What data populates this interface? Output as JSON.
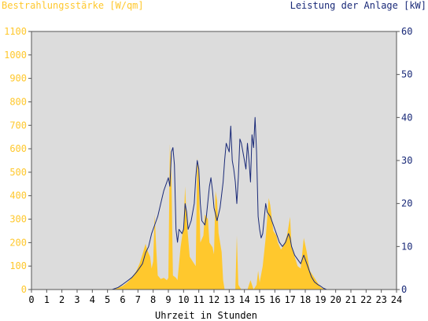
{
  "chart_data": {
    "type": "area",
    "left_axis_title": "Bestrahlungsstärke [W/qm]",
    "right_axis_title": "Leistung der Anlage [kW]",
    "xlabel": "Uhrzeit in Stunden",
    "x_ticks": [
      "0",
      "1",
      "2",
      "3",
      "4",
      "5",
      "6",
      "7",
      "8",
      "9",
      "10",
      "11",
      "12",
      "13",
      "14",
      "15",
      "16",
      "17",
      "18",
      "19",
      "20",
      "21",
      "22",
      "23",
      "24"
    ],
    "xlim": [
      0,
      24
    ],
    "left_ylim": [
      0,
      1100
    ],
    "left_ticks": [
      "0",
      "100",
      "200",
      "300",
      "400",
      "500",
      "600",
      "700",
      "800",
      "900",
      "1000",
      "1100"
    ],
    "right_ylim": [
      0,
      60
    ],
    "right_ticks": [
      "0",
      "10",
      "20",
      "30",
      "40",
      "50",
      "60"
    ],
    "grid": false,
    "colors": {
      "irradiance": "#ffc82d",
      "power": "#1a2a78",
      "left_axis": "#ffc82d",
      "right_axis": "#1a2a78",
      "plot_background": "#dcdcdc"
    },
    "series": [
      {
        "axis": "left",
        "unit": "W/qm",
        "points": [
          [
            0,
            0
          ],
          [
            5.3,
            0
          ],
          [
            5.6,
            5
          ],
          [
            6.0,
            15
          ],
          [
            6.3,
            30
          ],
          [
            6.6,
            50
          ],
          [
            6.9,
            80
          ],
          [
            7.1,
            110
          ],
          [
            7.3,
            150
          ],
          [
            7.5,
            195
          ],
          [
            7.6,
            170
          ],
          [
            7.8,
            140
          ],
          [
            7.9,
            90
          ],
          [
            8.0,
            120
          ],
          [
            8.1,
            320
          ],
          [
            8.2,
            180
          ],
          [
            8.3,
            60
          ],
          [
            8.5,
            45
          ],
          [
            8.7,
            50
          ],
          [
            8.9,
            40
          ],
          [
            9.0,
            50
          ],
          [
            9.1,
            620
          ],
          [
            9.2,
            480
          ],
          [
            9.3,
            60
          ],
          [
            9.5,
            50
          ],
          [
            9.6,
            40
          ],
          [
            9.8,
            180
          ],
          [
            10.0,
            270
          ],
          [
            10.1,
            440
          ],
          [
            10.2,
            300
          ],
          [
            10.4,
            140
          ],
          [
            10.6,
            120
          ],
          [
            10.8,
            100
          ],
          [
            10.9,
            560
          ],
          [
            11.0,
            480
          ],
          [
            11.1,
            200
          ],
          [
            11.3,
            230
          ],
          [
            11.4,
            320
          ],
          [
            11.6,
            300
          ],
          [
            11.7,
            200
          ],
          [
            11.9,
            180
          ],
          [
            12.0,
            150
          ],
          [
            12.1,
            420
          ],
          [
            12.2,
            380
          ],
          [
            12.3,
            240
          ],
          [
            12.5,
            160
          ],
          [
            12.6,
            40
          ],
          [
            12.7,
            0
          ],
          [
            13.4,
            0
          ],
          [
            13.5,
            230
          ],
          [
            13.6,
            20
          ],
          [
            13.8,
            0
          ],
          [
            14.2,
            0
          ],
          [
            14.4,
            40
          ],
          [
            14.6,
            0
          ],
          [
            14.8,
            20
          ],
          [
            14.9,
            80
          ],
          [
            15.0,
            30
          ],
          [
            15.2,
            100
          ],
          [
            15.4,
            220
          ],
          [
            15.6,
            390
          ],
          [
            15.7,
            360
          ],
          [
            15.9,
            250
          ],
          [
            16.1,
            230
          ],
          [
            16.2,
            200
          ],
          [
            16.4,
            170
          ],
          [
            16.6,
            190
          ],
          [
            16.8,
            230
          ],
          [
            17.0,
            310
          ],
          [
            17.1,
            180
          ],
          [
            17.3,
            140
          ],
          [
            17.5,
            100
          ],
          [
            17.7,
            90
          ],
          [
            17.9,
            220
          ],
          [
            18.1,
            160
          ],
          [
            18.3,
            80
          ],
          [
            18.5,
            60
          ],
          [
            18.8,
            30
          ],
          [
            19.0,
            10
          ],
          [
            19.3,
            0
          ],
          [
            24,
            0
          ]
        ]
      },
      {
        "axis": "right",
        "unit": "kW",
        "points": [
          [
            0,
            0
          ],
          [
            5.3,
            0
          ],
          [
            5.7,
            0.5
          ],
          [
            6.0,
            1.2
          ],
          [
            6.3,
            2
          ],
          [
            6.6,
            2.8
          ],
          [
            6.9,
            4
          ],
          [
            7.1,
            5
          ],
          [
            7.3,
            6
          ],
          [
            7.5,
            8.5
          ],
          [
            7.7,
            10
          ],
          [
            7.9,
            13
          ],
          [
            8.1,
            15
          ],
          [
            8.3,
            17
          ],
          [
            8.5,
            20
          ],
          [
            8.7,
            23
          ],
          [
            8.9,
            25
          ],
          [
            9.0,
            26
          ],
          [
            9.1,
            24
          ],
          [
            9.2,
            32
          ],
          [
            9.3,
            33
          ],
          [
            9.4,
            29
          ],
          [
            9.5,
            14
          ],
          [
            9.6,
            11
          ],
          [
            9.7,
            14
          ],
          [
            9.9,
            13
          ],
          [
            10.0,
            14
          ],
          [
            10.1,
            20
          ],
          [
            10.2,
            18
          ],
          [
            10.3,
            14
          ],
          [
            10.5,
            16
          ],
          [
            10.7,
            20
          ],
          [
            10.8,
            26
          ],
          [
            10.9,
            30
          ],
          [
            11.0,
            28
          ],
          [
            11.1,
            20
          ],
          [
            11.2,
            16
          ],
          [
            11.4,
            15
          ],
          [
            11.5,
            17
          ],
          [
            11.7,
            24
          ],
          [
            11.8,
            26
          ],
          [
            11.9,
            23
          ],
          [
            12.0,
            19
          ],
          [
            12.2,
            16
          ],
          [
            12.4,
            19
          ],
          [
            12.6,
            25
          ],
          [
            12.7,
            30
          ],
          [
            12.8,
            34
          ],
          [
            12.9,
            33
          ],
          [
            13.0,
            32
          ],
          [
            13.1,
            38
          ],
          [
            13.2,
            30
          ],
          [
            13.3,
            28
          ],
          [
            13.4,
            25
          ],
          [
            13.5,
            20
          ],
          [
            13.6,
            26
          ],
          [
            13.7,
            35
          ],
          [
            13.8,
            34
          ],
          [
            14.0,
            30
          ],
          [
            14.1,
            28
          ],
          [
            14.2,
            34
          ],
          [
            14.3,
            30
          ],
          [
            14.4,
            25
          ],
          [
            14.5,
            36
          ],
          [
            14.6,
            33
          ],
          [
            14.7,
            40
          ],
          [
            14.8,
            32
          ],
          [
            14.9,
            17
          ],
          [
            15.0,
            14
          ],
          [
            15.1,
            12
          ],
          [
            15.2,
            13
          ],
          [
            15.4,
            20
          ],
          [
            15.5,
            18
          ],
          [
            15.7,
            17
          ],
          [
            15.9,
            15
          ],
          [
            16.1,
            13
          ],
          [
            16.3,
            11
          ],
          [
            16.5,
            10
          ],
          [
            16.7,
            11
          ],
          [
            16.9,
            13
          ],
          [
            17.0,
            12
          ],
          [
            17.1,
            10
          ],
          [
            17.3,
            8
          ],
          [
            17.5,
            7
          ],
          [
            17.7,
            6
          ],
          [
            17.9,
            8
          ],
          [
            18.0,
            7
          ],
          [
            18.2,
            5
          ],
          [
            18.4,
            3
          ],
          [
            18.6,
            1.8
          ],
          [
            18.8,
            1.2
          ],
          [
            19.0,
            0.8
          ],
          [
            19.2,
            0.3
          ],
          [
            19.4,
            0
          ],
          [
            24,
            0
          ]
        ]
      }
    ]
  }
}
